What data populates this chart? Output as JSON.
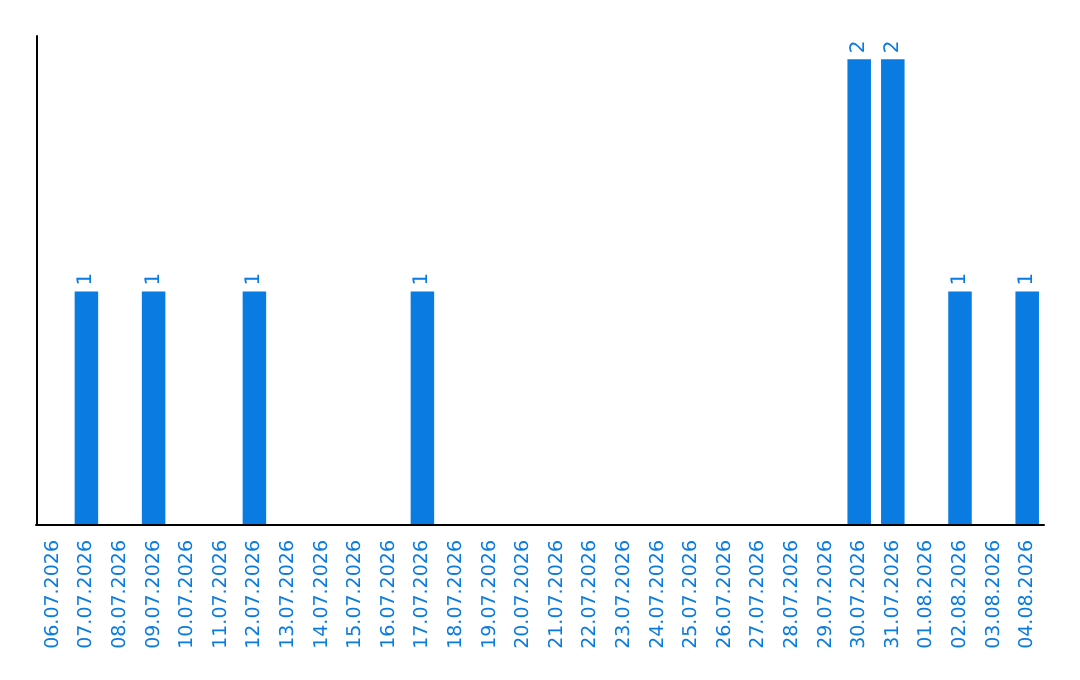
{
  "chart_data": {
    "type": "bar",
    "categories": [
      "06.07.2026",
      "07.07.2026",
      "08.07.2026",
      "09.07.2026",
      "10.07.2026",
      "11.07.2026",
      "12.07.2026",
      "13.07.2026",
      "14.07.2026",
      "15.07.2026",
      "16.07.2026",
      "17.07.2026",
      "18.07.2026",
      "19.07.2026",
      "20.07.2026",
      "21.07.2026",
      "22.07.2026",
      "23.07.2026",
      "24.07.2026",
      "25.07.2026",
      "26.07.2026",
      "27.07.2026",
      "28.07.2026",
      "29.07.2026",
      "30.07.2026",
      "31.07.2026",
      "01.08.2026",
      "02.08.2026",
      "03.08.2026",
      "04.08.2026"
    ],
    "values": [
      0,
      1,
      0,
      1,
      0,
      0,
      1,
      0,
      0,
      0,
      0,
      1,
      0,
      0,
      0,
      0,
      0,
      0,
      0,
      0,
      0,
      0,
      0,
      0,
      2,
      2,
      0,
      1,
      0,
      1
    ],
    "value_labels": [
      null,
      "1",
      null,
      "1",
      null,
      null,
      "1",
      null,
      null,
      null,
      null,
      "1",
      null,
      null,
      null,
      null,
      null,
      null,
      null,
      null,
      null,
      null,
      null,
      null,
      "2",
      "2",
      null,
      "1",
      null,
      "1"
    ],
    "color": "#0a7be0",
    "tick_labels": "x",
    "grid": false
  }
}
